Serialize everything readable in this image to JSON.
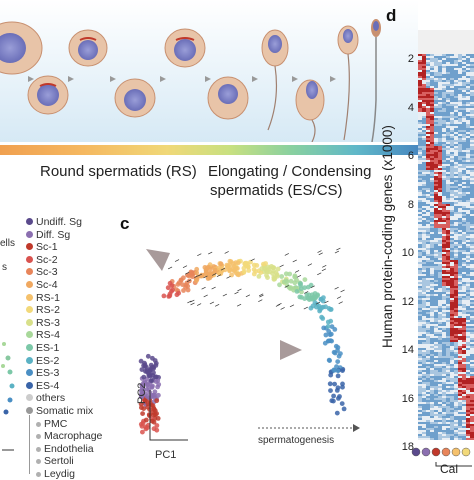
{
  "panels": {
    "c": "c",
    "d": "d"
  },
  "top_panel": {
    "round_label": "Round spermatids (RS)",
    "elongating_label_line1": "Elongating / Condensing",
    "elongating_label_line2": "spermatids (ES/CS)"
  },
  "legend": {
    "left_fragments": [
      "ells",
      "s"
    ],
    "items": [
      {
        "label": "Undiff. Sg",
        "color": "#5a4a8c"
      },
      {
        "label": "Diff. Sg",
        "color": "#8b6fb0"
      },
      {
        "label": "Sc-1",
        "color": "#c0392b"
      },
      {
        "label": "Sc-2",
        "color": "#d9534f"
      },
      {
        "label": "Sc-3",
        "color": "#e8855a"
      },
      {
        "label": "Sc-4",
        "color": "#f0a860"
      },
      {
        "label": "RS-1",
        "color": "#f5c16c"
      },
      {
        "label": "RS-2",
        "color": "#f2d97a"
      },
      {
        "label": "RS-3",
        "color": "#d8e08a"
      },
      {
        "label": "RS-4",
        "color": "#a8d89a"
      },
      {
        "label": "ES-1",
        "color": "#7cc8a8"
      },
      {
        "label": "ES-2",
        "color": "#5bb2c4"
      },
      {
        "label": "ES-3",
        "color": "#4a8fc4"
      },
      {
        "label": "ES-4",
        "color": "#3a64a8"
      },
      {
        "label": "others",
        "color": "#cccccc"
      }
    ],
    "somatic_header": "Somatic mix",
    "somatic_items": [
      "PMC",
      "Macrophage",
      "Endothelia",
      "Sertoli",
      "Leydig"
    ]
  },
  "panel_c": {
    "pc2_label": "PC2",
    "pc1_label": "PC1",
    "arrow_label": "spermatogenesis"
  },
  "panel_d": {
    "y_axis_label": "Human protein-coding genes (x1000)",
    "y_ticks": [
      "2",
      "4",
      "6",
      "8",
      "10",
      "12",
      "14",
      "16",
      "18"
    ],
    "bottom_label": "Cal"
  },
  "colors": {
    "stage_gradient": [
      "#f0a050",
      "#e87040",
      "#f5c060",
      "#f0d878",
      "#c8e080",
      "#88d0a0",
      "#60b8c8",
      "#4888c0"
    ],
    "heat_red": "#b22222",
    "heat_blue": "#6fa0cc"
  }
}
